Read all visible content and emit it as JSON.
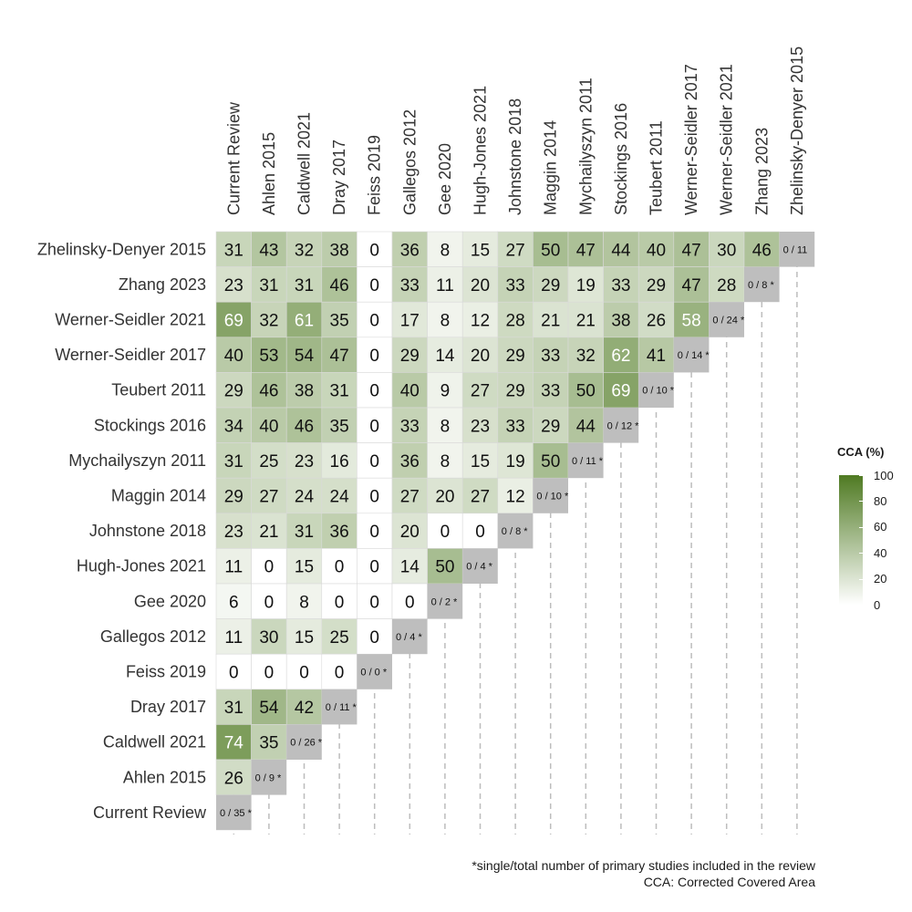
{
  "chart_data": {
    "type": "heatmap",
    "title": "",
    "columns": [
      "Current Review",
      "Ahlen 2015",
      "Caldwell 2021",
      "Dray 2017",
      "Feiss 2019",
      "Gallegos 2012",
      "Gee 2020",
      "Hugh-Jones 2021",
      "Johnstone 2018",
      "Maggin 2014",
      "Mychailyszyn 2011",
      "Stockings 2016",
      "Teubert 2011",
      "Werner-Seidler 2017",
      "Werner-Seidler 2021",
      "Zhang 2023",
      "Zhelinsky-Denyer 2015"
    ],
    "rows": [
      "Zhelinsky-Denyer 2015",
      "Zhang 2023",
      "Werner-Seidler 2021",
      "Werner-Seidler 2017",
      "Teubert 2011",
      "Stockings 2016",
      "Mychailyszyn 2011",
      "Maggin 2014",
      "Johnstone 2018",
      "Hugh-Jones 2021",
      "Gee 2020",
      "Gallegos 2012",
      "Feiss 2019",
      "Dray 2017",
      "Caldwell 2021",
      "Ahlen 2015",
      "Current Review"
    ],
    "values": [
      [
        31,
        43,
        32,
        38,
        0,
        36,
        8,
        15,
        27,
        50,
        47,
        44,
        40,
        47,
        30,
        46
      ],
      [
        23,
        31,
        31,
        46,
        0,
        33,
        11,
        20,
        33,
        29,
        19,
        33,
        29,
        47,
        28
      ],
      [
        69,
        32,
        61,
        35,
        0,
        17,
        8,
        12,
        28,
        21,
        21,
        38,
        26,
        58
      ],
      [
        40,
        53,
        54,
        47,
        0,
        29,
        14,
        20,
        29,
        33,
        32,
        62,
        41
      ],
      [
        29,
        46,
        38,
        31,
        0,
        40,
        9,
        27,
        29,
        33,
        50,
        69
      ],
      [
        34,
        40,
        46,
        35,
        0,
        33,
        8,
        23,
        33,
        29,
        44
      ],
      [
        31,
        25,
        23,
        16,
        0,
        36,
        8,
        15,
        19,
        50
      ],
      [
        29,
        27,
        24,
        24,
        0,
        27,
        20,
        27,
        12
      ],
      [
        23,
        21,
        31,
        36,
        0,
        20,
        0,
        0
      ],
      [
        11,
        0,
        15,
        0,
        0,
        14,
        50
      ],
      [
        6,
        0,
        8,
        0,
        0,
        0
      ],
      [
        11,
        30,
        15,
        25,
        0
      ],
      [
        0,
        0,
        0,
        0
      ],
      [
        31,
        54,
        42
      ],
      [
        74,
        35
      ],
      [
        26
      ],
      []
    ],
    "diagonal_labels": [
      "0 / 11",
      "0 / 8 *",
      "0 / 24 *",
      "0 / 14 *",
      "0 / 10 *",
      "0 / 12 *",
      "0 / 11 *",
      "0 / 10 *",
      "0 / 8 *",
      "0 / 4 *",
      "0 / 2 *",
      "0 / 4 *",
      "0 / 0 *",
      "0 / 11 *",
      "0 / 26 *",
      "0 / 9 *",
      "0 / 35 *"
    ],
    "legend": {
      "title": "CCA (%)",
      "range": [
        0,
        100
      ],
      "ticks": [
        100,
        80,
        60,
        40,
        20,
        0
      ],
      "color_low": "#ffffff",
      "color_high": "#4f7a22"
    },
    "diagonal_color": "#bebebe",
    "grid": "vertical dashed",
    "legend_position": "right"
  },
  "footnote": {
    "line1": "*single/total number of primary studies included in the review",
    "line2": "CCA: Corrected Covered Area"
  }
}
